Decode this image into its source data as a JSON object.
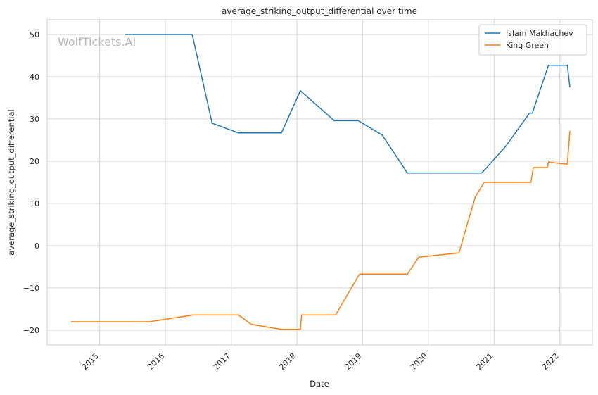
{
  "watermark": "WolfTickets.AI",
  "chart_data": {
    "type": "line",
    "title": "average_striking_output_differential over time",
    "xlabel": "Date",
    "ylabel": "average_striking_output_differential",
    "x_type": "date",
    "xlim": [
      "2014-03-15",
      "2022-07-01"
    ],
    "ylim": [
      -23.5,
      53.5
    ],
    "x_ticks": [
      {
        "date": "2015-01-01",
        "label": "2015"
      },
      {
        "date": "2016-01-01",
        "label": "2016"
      },
      {
        "date": "2017-01-01",
        "label": "2017"
      },
      {
        "date": "2018-01-01",
        "label": "2018"
      },
      {
        "date": "2019-01-01",
        "label": "2019"
      },
      {
        "date": "2020-01-01",
        "label": "2020"
      },
      {
        "date": "2021-01-01",
        "label": "2021"
      },
      {
        "date": "2022-01-01",
        "label": "2022"
      }
    ],
    "y_ticks": [
      {
        "value": -20,
        "label": "−20"
      },
      {
        "value": -10,
        "label": "−10"
      },
      {
        "value": 0,
        "label": "0"
      },
      {
        "value": 10,
        "label": "10"
      },
      {
        "value": 20,
        "label": "20"
      },
      {
        "value": 30,
        "label": "30"
      },
      {
        "value": 40,
        "label": "40"
      },
      {
        "value": 50,
        "label": "50"
      }
    ],
    "grid": true,
    "legend_position": "top-right",
    "series": [
      {
        "name": "Islam Makhachev",
        "color": "#1f77b4",
        "points": [
          [
            "2015-05-23",
            50.0
          ],
          [
            "2016-05-29",
            50.0
          ],
          [
            "2016-09-17",
            29.0
          ],
          [
            "2017-02-11",
            26.7
          ],
          [
            "2017-10-07",
            26.7
          ],
          [
            "2018-01-20",
            36.7
          ],
          [
            "2018-07-28",
            29.6
          ],
          [
            "2018-12-08",
            29.6
          ],
          [
            "2019-04-20",
            26.2
          ],
          [
            "2019-09-07",
            17.2
          ],
          [
            "2020-10-24",
            17.2
          ],
          [
            "2021-03-06",
            23.5
          ],
          [
            "2021-07-17",
            31.4
          ],
          [
            "2021-08-01",
            31.4
          ],
          [
            "2021-10-30",
            42.7
          ],
          [
            "2022-02-12",
            42.7
          ],
          [
            "2022-02-26",
            37.5
          ]
        ]
      },
      {
        "name": "King Green",
        "color": "#ff7f0e",
        "points": [
          [
            "2014-07-26",
            -18.0
          ],
          [
            "2015-10-03",
            -18.0
          ],
          [
            "2016-06-04",
            -16.4
          ],
          [
            "2017-02-11",
            -16.4
          ],
          [
            "2017-04-22",
            -18.6
          ],
          [
            "2017-10-07",
            -19.8
          ],
          [
            "2018-01-20",
            -19.8
          ],
          [
            "2018-01-27",
            -16.4
          ],
          [
            "2018-08-04",
            -16.4
          ],
          [
            "2018-12-15",
            -6.7
          ],
          [
            "2019-09-07",
            -6.7
          ],
          [
            "2019-11-09",
            -2.7
          ],
          [
            "2020-06-20",
            -1.7
          ],
          [
            "2020-08-08",
            5.6
          ],
          [
            "2020-09-19",
            11.6
          ],
          [
            "2020-11-07",
            15.0
          ],
          [
            "2021-07-24",
            15.0
          ],
          [
            "2021-08-07",
            18.5
          ],
          [
            "2021-10-23",
            18.5
          ],
          [
            "2021-10-30",
            19.8
          ],
          [
            "2022-02-12",
            19.3
          ],
          [
            "2022-02-26",
            27.2
          ]
        ]
      }
    ]
  }
}
